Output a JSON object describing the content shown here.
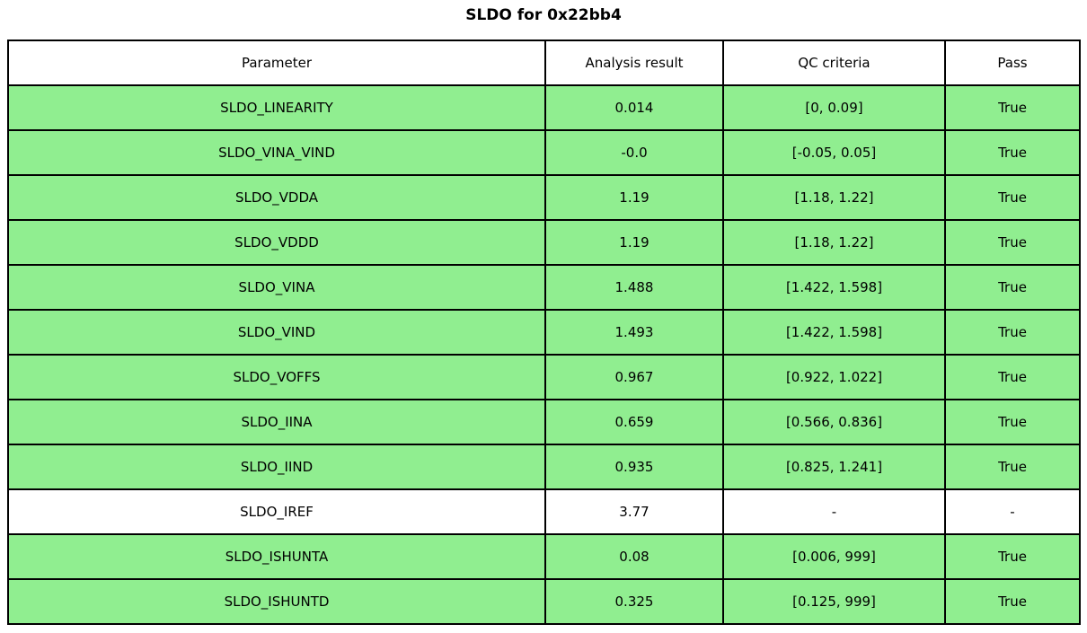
{
  "chart_data": {
    "type": "table",
    "title": "SLDO for 0x22bb4",
    "columns": [
      "Parameter",
      "Analysis result",
      "QC criteria",
      "Pass"
    ],
    "rows": [
      [
        "SLDO_LINEARITY",
        "0.014",
        "[0, 0.09]",
        "True"
      ],
      [
        "SLDO_VINA_VIND",
        "-0.0",
        "[-0.05, 0.05]",
        "True"
      ],
      [
        "SLDO_VDDA",
        "1.19",
        "[1.18, 1.22]",
        "True"
      ],
      [
        "SLDO_VDDD",
        "1.19",
        "[1.18, 1.22]",
        "True"
      ],
      [
        "SLDO_VINA",
        "1.488",
        "[1.422, 1.598]",
        "True"
      ],
      [
        "SLDO_VIND",
        "1.493",
        "[1.422, 1.598]",
        "True"
      ],
      [
        "SLDO_VOFFS",
        "0.967",
        "[0.922, 1.022]",
        "True"
      ],
      [
        "SLDO_IINA",
        "0.659",
        "[0.566, 0.836]",
        "True"
      ],
      [
        "SLDO_IIND",
        "0.935",
        "[0.825, 1.241]",
        "True"
      ],
      [
        "SLDO_IREF",
        "3.77",
        "-",
        "-"
      ],
      [
        "SLDO_ISHUNTA",
        "0.08",
        "[0.006, 999]",
        "True"
      ],
      [
        "SLDO_ISHUNTD",
        "0.325",
        "[0.125, 999]",
        "True"
      ]
    ],
    "row_highlight": [
      true,
      true,
      true,
      true,
      true,
      true,
      true,
      true,
      true,
      false,
      true,
      true
    ],
    "colors": {
      "pass_row_background": "#90ee90",
      "neutral_row_background": "#ffffff",
      "border": "#000000",
      "text": "#000000"
    },
    "layout": {
      "grid": true,
      "legend": false,
      "title_position": "top-center"
    }
  }
}
